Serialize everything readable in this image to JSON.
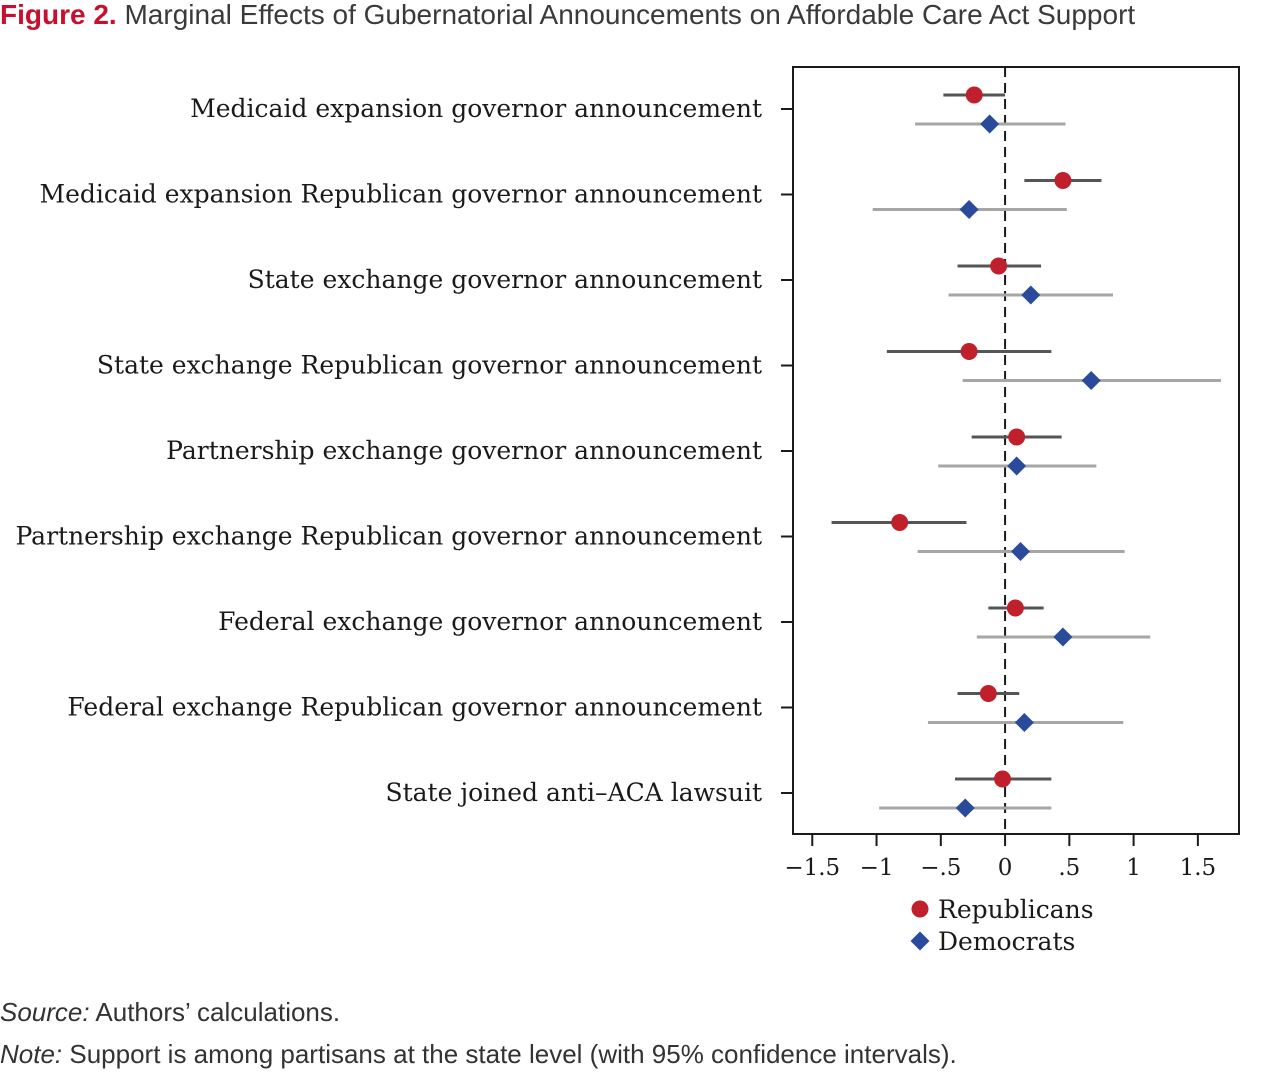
{
  "figure": {
    "label": "Figure 2.",
    "title": "Marginal Effects of Gubernatorial Announcements on Affordable Care Act Support"
  },
  "source": {
    "label": "Source:",
    "text": " Authors’ calculations."
  },
  "note": {
    "label": "Note:",
    "text": " Support is among partisans at the state level (with 95% confidence intervals)."
  },
  "colors": {
    "republicans": "#c0202b",
    "democrats": "#2a4a9c",
    "republicans_ci": "#555555",
    "democrats_ci": "#a6a6a6"
  },
  "chart_data": {
    "type": "scatter",
    "orientation": "horizontal",
    "title": "",
    "xlabel": "",
    "ylabel": "",
    "xlim": [
      -1.65,
      1.82
    ],
    "reference_line": 0,
    "grid": false,
    "legend_position": "bottom",
    "x_ticks": [
      {
        "value": -1.5,
        "label": "−1.5"
      },
      {
        "value": -1,
        "label": "−1"
      },
      {
        "value": -0.5,
        "label": "−.5"
      },
      {
        "value": 0,
        "label": "0"
      },
      {
        "value": 0.5,
        "label": ".5"
      },
      {
        "value": 1,
        "label": "1"
      },
      {
        "value": 1.5,
        "label": "1.5"
      }
    ],
    "categories": [
      "Medicaid expansion governor announcement",
      "Medicaid expansion Republican governor announcement",
      "State exchange governor announcement",
      "State exchange Republican governor announcement",
      "Partnership exchange governor announcement",
      "Partnership exchange Republican governor announcement",
      "Federal exchange governor announcement",
      "Federal exchange Republican governor announcement",
      "State joined anti–ACA lawsuit"
    ],
    "series": [
      {
        "name": "Republicans",
        "marker": "circle",
        "values": [
          -0.24,
          0.45,
          -0.05,
          -0.28,
          0.09,
          -0.82,
          0.08,
          -0.13,
          -0.02
        ],
        "ci_low": [
          -0.48,
          0.15,
          -0.37,
          -0.92,
          -0.26,
          -1.35,
          -0.13,
          -0.37,
          -0.39
        ],
        "ci_high": [
          0,
          0.75,
          0.28,
          0.36,
          0.44,
          -0.3,
          0.3,
          0.11,
          0.36
        ]
      },
      {
        "name": "Democrats",
        "marker": "diamond",
        "values": [
          -0.12,
          -0.28,
          0.2,
          0.67,
          0.09,
          0.12,
          0.45,
          0.15,
          -0.31
        ],
        "ci_low": [
          -0.7,
          -1.03,
          -0.44,
          -0.33,
          -0.52,
          -0.68,
          -0.22,
          -0.6,
          -0.98
        ],
        "ci_high": [
          0.47,
          0.48,
          0.84,
          1.68,
          0.71,
          0.93,
          1.13,
          0.92,
          0.36
        ]
      }
    ]
  }
}
